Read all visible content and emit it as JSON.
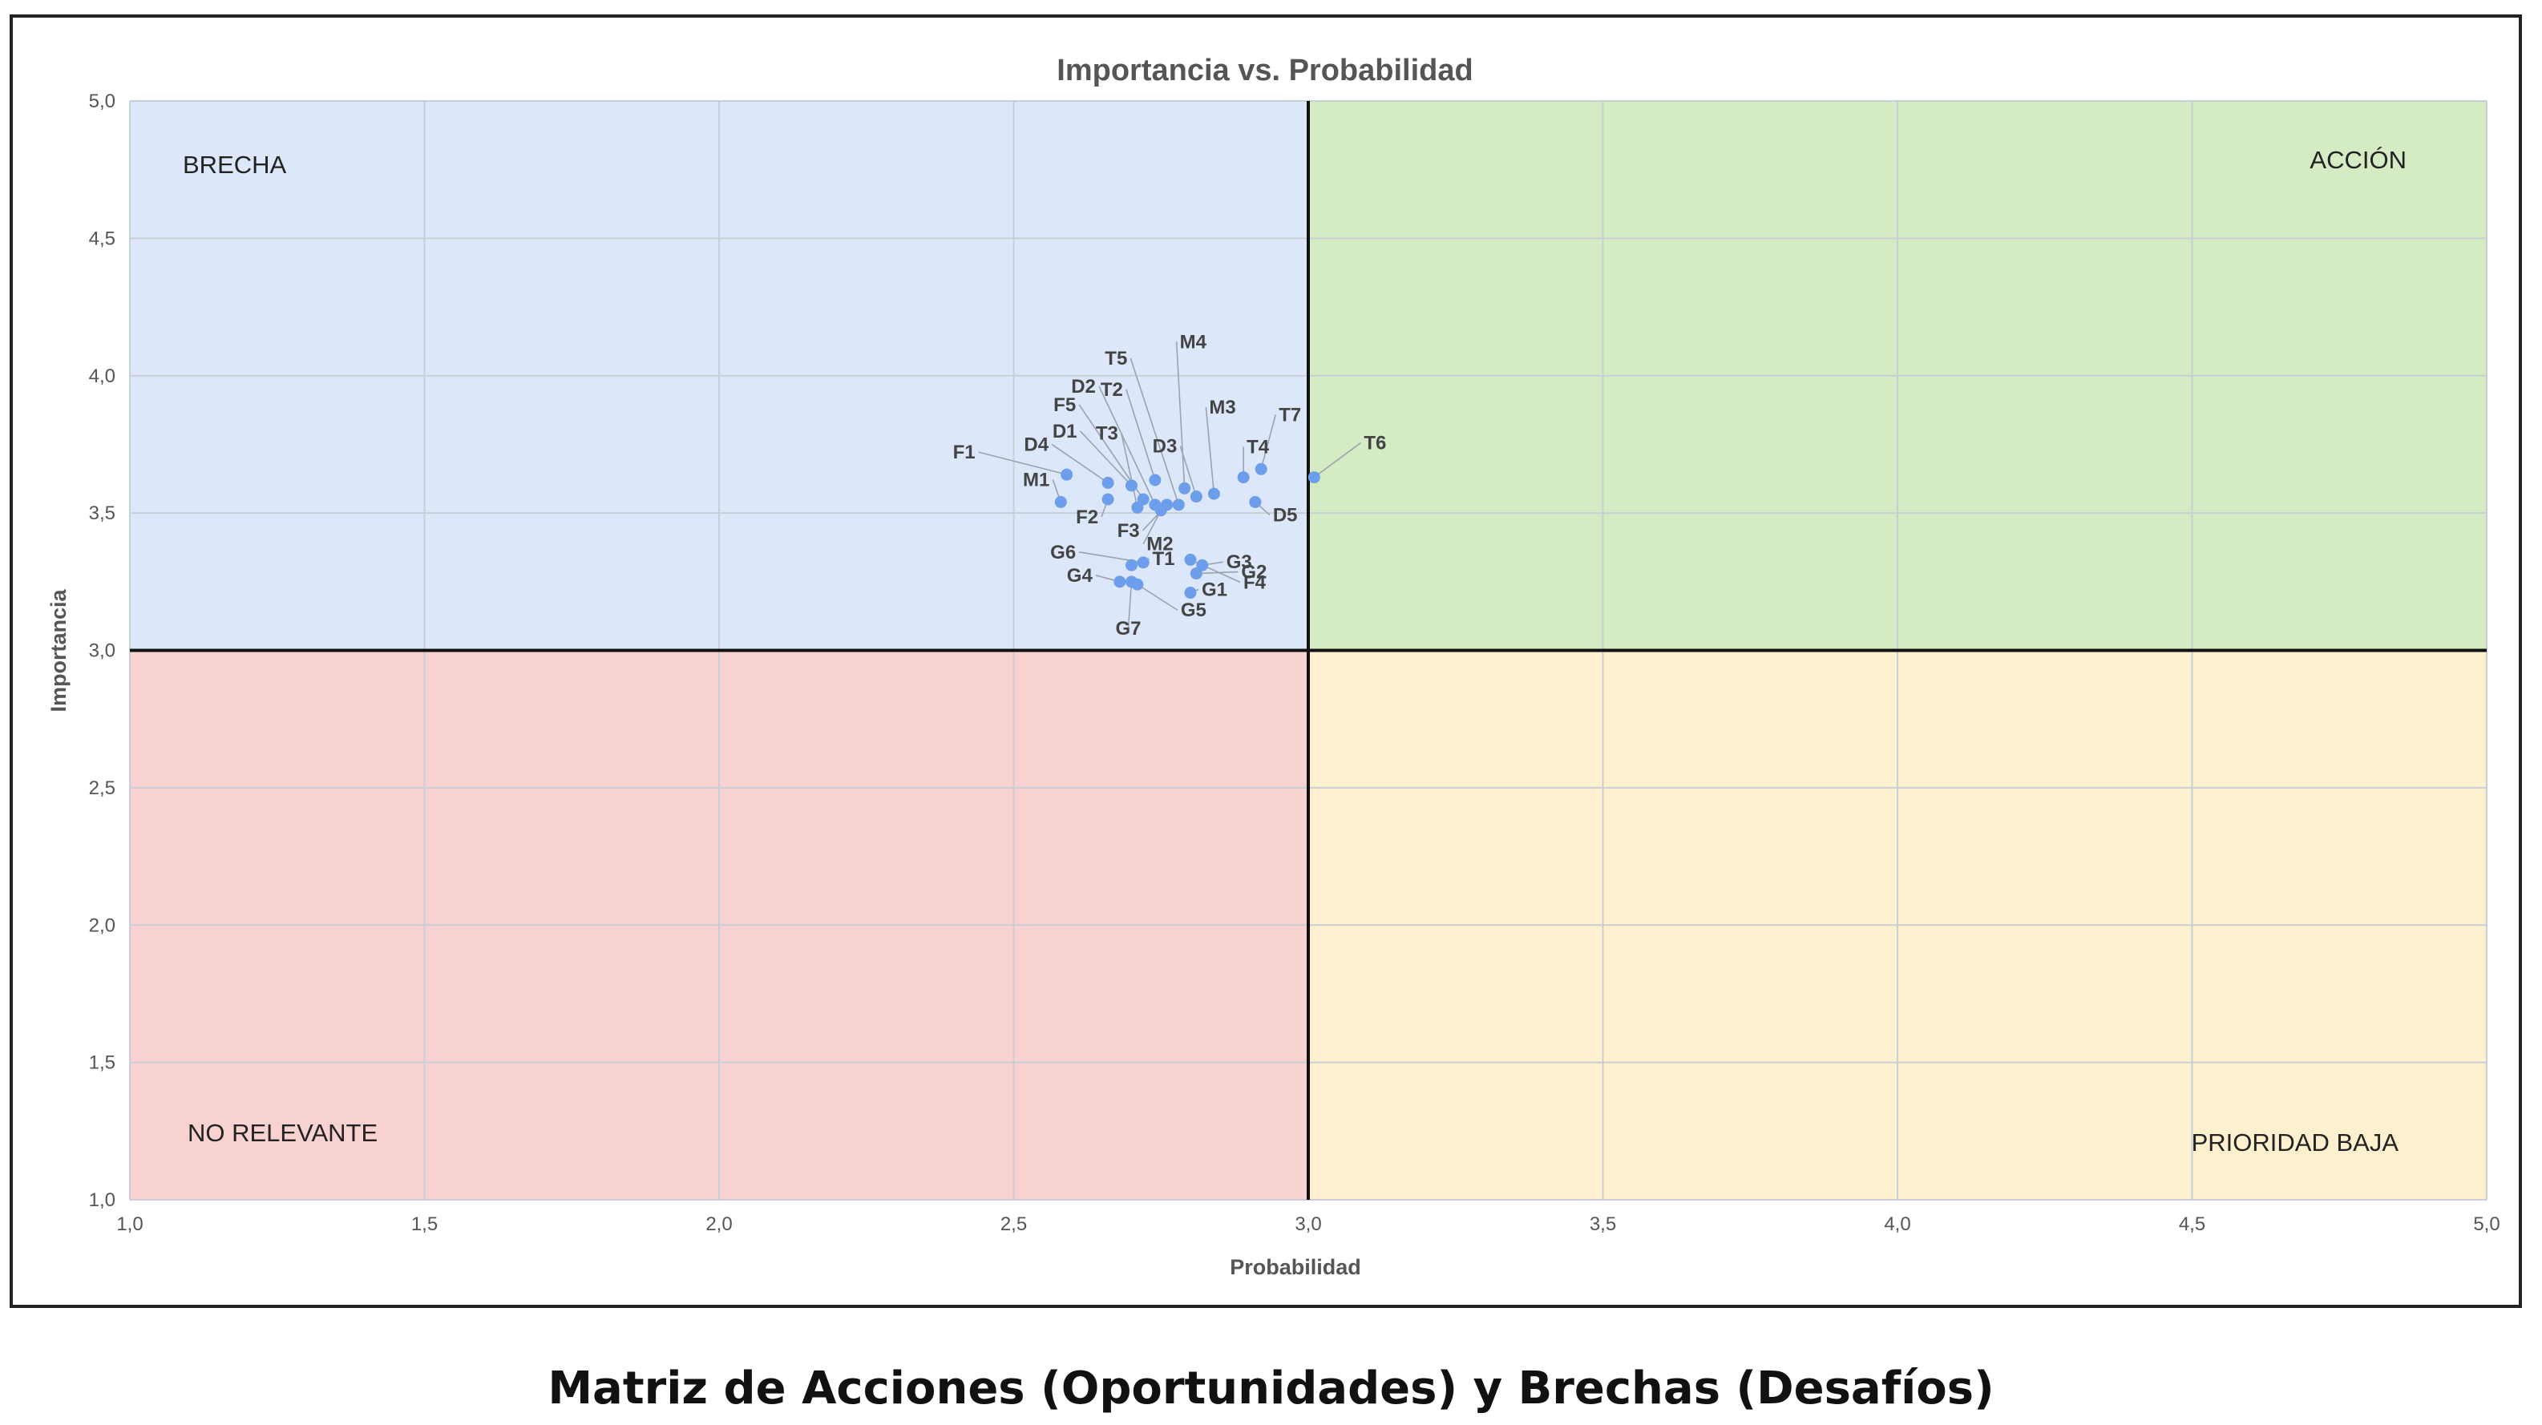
{
  "caption": "Matriz de Acciones (Oportunidades) y Brechas (Desafíos)",
  "chart_data": {
    "type": "scatter",
    "title": "Importancia vs. Probabilidad",
    "xlabel": "Probabilidad",
    "ylabel": "Importancia",
    "xlim": [
      1.0,
      5.0
    ],
    "ylim": [
      1.0,
      5.0
    ],
    "x_ticks": [
      "1,0",
      "1,5",
      "2,0",
      "2,5",
      "3,0",
      "3,5",
      "4,0",
      "4,5",
      "5,0"
    ],
    "y_ticks": [
      "1,0",
      "1,5",
      "2,0",
      "2,5",
      "3,0",
      "3,5",
      "4,0",
      "4,5",
      "5,0"
    ],
    "grid": true,
    "threshold": {
      "x": 3.0,
      "y": 3.0
    },
    "quadrants": [
      {
        "label": "BRECHA",
        "color": "#dce8fa",
        "position": "top-left"
      },
      {
        "label": "ACCIÓN",
        "color": "#d5ebc3",
        "position": "top-right"
      },
      {
        "label": "NO RELEVANTE",
        "color": "#f8d2d1",
        "position": "bottom-left"
      },
      {
        "label": "PRIORIDAD BAJA",
        "color": "#fdf0cf",
        "position": "bottom-right"
      }
    ],
    "point_color": "#6d9eeb",
    "points": [
      {
        "label": "F1",
        "x": 2.59,
        "y": 3.64
      },
      {
        "label": "M1",
        "x": 2.58,
        "y": 3.54
      },
      {
        "label": "D4",
        "x": 2.66,
        "y": 3.61
      },
      {
        "label": "D1",
        "x": 2.7,
        "y": 3.6
      },
      {
        "label": "F2",
        "x": 2.66,
        "y": 3.55
      },
      {
        "label": "F5",
        "x": 2.72,
        "y": 3.55
      },
      {
        "label": "D2",
        "x": 2.74,
        "y": 3.53
      },
      {
        "label": "T3",
        "x": 2.71,
        "y": 3.52
      },
      {
        "label": "F3",
        "x": 2.76,
        "y": 3.53
      },
      {
        "label": "T5",
        "x": 2.78,
        "y": 3.53
      },
      {
        "label": "M4",
        "x": 2.79,
        "y": 3.59
      },
      {
        "label": "T2",
        "x": 2.74,
        "y": 3.62
      },
      {
        "label": "D3",
        "x": 2.81,
        "y": 3.56
      },
      {
        "label": "M3",
        "x": 2.84,
        "y": 3.57
      },
      {
        "label": "T4",
        "x": 2.89,
        "y": 3.63
      },
      {
        "label": "T7",
        "x": 2.92,
        "y": 3.66
      },
      {
        "label": "D5",
        "x": 2.91,
        "y": 3.54
      },
      {
        "label": "T6",
        "x": 3.01,
        "y": 3.63
      },
      {
        "label": "M2",
        "x": 2.75,
        "y": 3.51
      },
      {
        "label": "F4",
        "x": 2.8,
        "y": 3.33
      },
      {
        "label": "G3",
        "x": 2.82,
        "y": 3.31
      },
      {
        "label": "G6",
        "x": 2.72,
        "y": 3.32
      },
      {
        "label": "T1",
        "x": 2.7,
        "y": 3.31
      },
      {
        "label": "G2",
        "x": 2.81,
        "y": 3.28
      },
      {
        "label": "G4",
        "x": 2.68,
        "y": 3.25
      },
      {
        "label": "G1",
        "x": 2.8,
        "y": 3.21
      },
      {
        "label": "G7",
        "x": 2.7,
        "y": 3.25
      },
      {
        "label": "G5",
        "x": 2.71,
        "y": 3.24
      }
    ]
  }
}
